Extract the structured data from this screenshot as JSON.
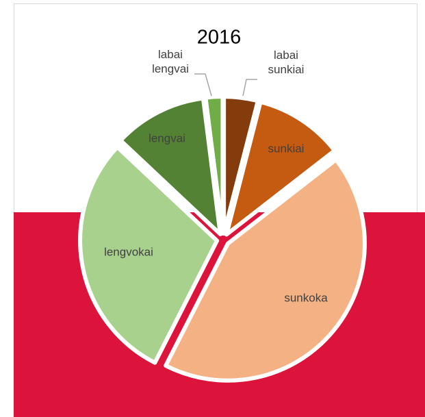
{
  "chart_data": {
    "type": "pie",
    "title": "2016",
    "categories": [
      "labai sunkiai",
      "sunkiai",
      "sunkoka",
      "lengvokai",
      "lengvai",
      "labai lengvai"
    ],
    "values": [
      4,
      10.5,
      43,
      29.5,
      11,
      2
    ],
    "colors": [
      "#843c0c",
      "#c55a11",
      "#f4b183",
      "#a9d18e",
      "#548235",
      "#70ad47"
    ]
  }
}
